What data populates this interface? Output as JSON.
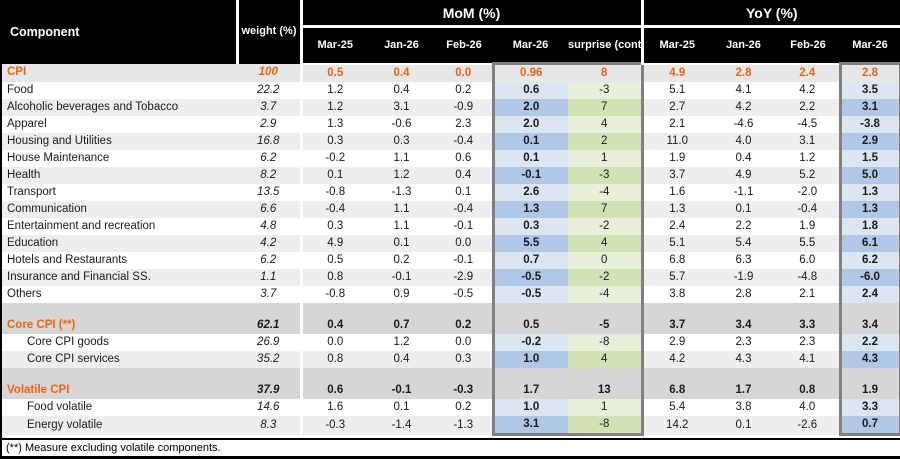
{
  "colors": {
    "orange": "#ef650f",
    "blue-light": "#dce6f2",
    "blue-dark": "#b0c7e6",
    "green-light": "#e7f0d9",
    "green-dark": "#d1e2b5",
    "box-border": "#808080",
    "row-stripe": "#eeeeee",
    "row-section": "#d6d6d6",
    "row-cpi": "#e7e7e7"
  },
  "header": {
    "component": "Component",
    "weight": "weight (%)",
    "mom_group": "MoM (%)",
    "yoy_group": "YoY (%)",
    "mom_months": [
      "Mar-25",
      "Jan-26",
      "Feb-26",
      "Mar-26"
    ],
    "surprise": "surprise (contr.-bps.)",
    "yoy_months": [
      "Mar-25",
      "Jan-26",
      "Feb-26",
      "Mar-26"
    ]
  },
  "footnote": "(**) Measure excluding volatile components.",
  "chart_data": {
    "type": "table",
    "column_groups": [
      "MoM (%)",
      "YoY (%)"
    ],
    "columns": [
      "Component",
      "weight (%)",
      "MoM Mar-25",
      "MoM Jan-26",
      "MoM Feb-26",
      "MoM Mar-26",
      "MoM surprise (contr.-bps.)",
      "YoY Mar-25",
      "YoY Jan-26",
      "YoY Feb-26",
      "YoY Mar-26"
    ],
    "rows": [
      {
        "label": "CPI",
        "style": "cpi",
        "weight": "100",
        "mom": [
          "0.5",
          "0.4",
          "0.0",
          "0.96"
        ],
        "surprise": "8",
        "yoy": [
          "4.9",
          "2.8",
          "2.4",
          "2.8"
        ]
      },
      {
        "label": "Food",
        "style": "white",
        "weight": "22.2",
        "mom": [
          "1.2",
          "0.4",
          "0.2",
          "0.6"
        ],
        "surprise": "-3",
        "yoy": [
          "5.1",
          "4.1",
          "4.2",
          "3.5"
        ]
      },
      {
        "label": "Alcoholic beverages and Tobacco",
        "style": "stripe",
        "weight": "3.7",
        "mom": [
          "1.2",
          "3.1",
          "-0.9",
          "2.0"
        ],
        "surprise": "7",
        "yoy": [
          "2.7",
          "4.2",
          "2.2",
          "3.1"
        ]
      },
      {
        "label": "Apparel",
        "style": "white",
        "weight": "2.9",
        "mom": [
          "1.3",
          "-0.6",
          "2.3",
          "2.0"
        ],
        "surprise": "4",
        "yoy": [
          "2.1",
          "-4.6",
          "-4.5",
          "-3.8"
        ]
      },
      {
        "label": "Housing and Utilities",
        "style": "stripe",
        "weight": "16.8",
        "mom": [
          "0.3",
          "0.3",
          "-0.4",
          "0.1"
        ],
        "surprise": "2",
        "yoy": [
          "11.0",
          "4.0",
          "3.1",
          "2.9"
        ]
      },
      {
        "label": "House Maintenance",
        "style": "white",
        "weight": "6.2",
        "mom": [
          "-0.2",
          "1.1",
          "0.6",
          "0.1"
        ],
        "surprise": "1",
        "yoy": [
          "1.9",
          "0.4",
          "1.2",
          "1.5"
        ]
      },
      {
        "label": "Health",
        "style": "stripe",
        "weight": "8.2",
        "mom": [
          "0.1",
          "1.2",
          "0.4",
          "-0.1"
        ],
        "surprise": "-3",
        "yoy": [
          "3.7",
          "4.9",
          "5.2",
          "5.0"
        ]
      },
      {
        "label": "Transport",
        "style": "white",
        "weight": "13.5",
        "mom": [
          "-0.8",
          "-1.3",
          "0.1",
          "2.6"
        ],
        "surprise": "-4",
        "yoy": [
          "1.6",
          "-1.1",
          "-2.0",
          "1.3"
        ]
      },
      {
        "label": "Communication",
        "style": "stripe",
        "weight": "6.6",
        "mom": [
          "-0.4",
          "1.1",
          "-0.4",
          "1.3"
        ],
        "surprise": "7",
        "yoy": [
          "1.3",
          "0.1",
          "-0.4",
          "1.3"
        ]
      },
      {
        "label": "Entertainment and recreation",
        "style": "white",
        "weight": "4.8",
        "mom": [
          "0.3",
          "1.1",
          "-0.1",
          "0.3"
        ],
        "surprise": "-2",
        "yoy": [
          "2.4",
          "2.2",
          "1.9",
          "1.8"
        ]
      },
      {
        "label": "Education",
        "style": "stripe",
        "weight": "4.2",
        "mom": [
          "4.9",
          "0.1",
          "0.0",
          "5.5"
        ],
        "surprise": "4",
        "yoy": [
          "5.1",
          "5.4",
          "5.5",
          "6.1"
        ]
      },
      {
        "label": "Hotels and Restaurants",
        "style": "white",
        "weight": "6.2",
        "mom": [
          "0.5",
          "0.2",
          "-0.1",
          "0.7"
        ],
        "surprise": "0",
        "yoy": [
          "6.8",
          "6.3",
          "6.0",
          "6.2"
        ]
      },
      {
        "label": "Insurance and Financial SS.",
        "style": "stripe",
        "weight": "1.1",
        "mom": [
          "0.8",
          "-0.1",
          "-2.9",
          "-0.5"
        ],
        "surprise": "-2",
        "yoy": [
          "5.7",
          "-1.9",
          "-4.8",
          "-6.0"
        ]
      },
      {
        "label": "Others",
        "style": "white",
        "weight": "3.7",
        "mom": [
          "-0.8",
          "0.9",
          "-0.5",
          "-0.5"
        ],
        "surprise": "-4",
        "yoy": [
          "3.8",
          "2.8",
          "2.1",
          "2.4"
        ]
      },
      {
        "style": "section",
        "spacer": true
      },
      {
        "label": "Core CPI (**)",
        "style": "section",
        "weight": "62.1",
        "mom": [
          "0.4",
          "0.7",
          "0.2",
          "0.5"
        ],
        "surprise": "-5",
        "yoy": [
          "3.7",
          "3.4",
          "3.3",
          "3.4"
        ]
      },
      {
        "label": "Core CPI goods",
        "style": "white",
        "indent": true,
        "weight": "26.9",
        "mom": [
          "0.0",
          "1.2",
          "0.0",
          "-0.2"
        ],
        "surprise": "-8",
        "yoy": [
          "2.9",
          "2.3",
          "2.3",
          "2.2"
        ]
      },
      {
        "label": "Core CPI services",
        "style": "stripe",
        "indent": true,
        "weight": "35.2",
        "mom": [
          "0.8",
          "0.4",
          "0.3",
          "1.0"
        ],
        "surprise": "4",
        "yoy": [
          "4.2",
          "4.3",
          "4.1",
          "4.3"
        ]
      },
      {
        "style": "section",
        "spacer": true
      },
      {
        "label": "Volatile CPI",
        "style": "section",
        "weight": "37.9",
        "mom": [
          "0.6",
          "-0.1",
          "-0.3",
          "1.7"
        ],
        "surprise": "13",
        "yoy": [
          "6.8",
          "1.7",
          "0.8",
          "1.9"
        ]
      },
      {
        "label": "Food volatile",
        "style": "white",
        "indent": true,
        "weight": "14.6",
        "mom": [
          "1.6",
          "0.1",
          "0.2",
          "1.0"
        ],
        "surprise": "1",
        "yoy": [
          "5.4",
          "3.8",
          "4.0",
          "3.3"
        ]
      },
      {
        "label": "Energy volatile",
        "style": "stripe",
        "indent": true,
        "weight": "8.3",
        "mom": [
          "-0.3",
          "-1.4",
          "-1.3",
          "3.1"
        ],
        "surprise": "-8",
        "yoy": [
          "14.2",
          "0.1",
          "-2.6",
          "0.7"
        ]
      }
    ]
  }
}
